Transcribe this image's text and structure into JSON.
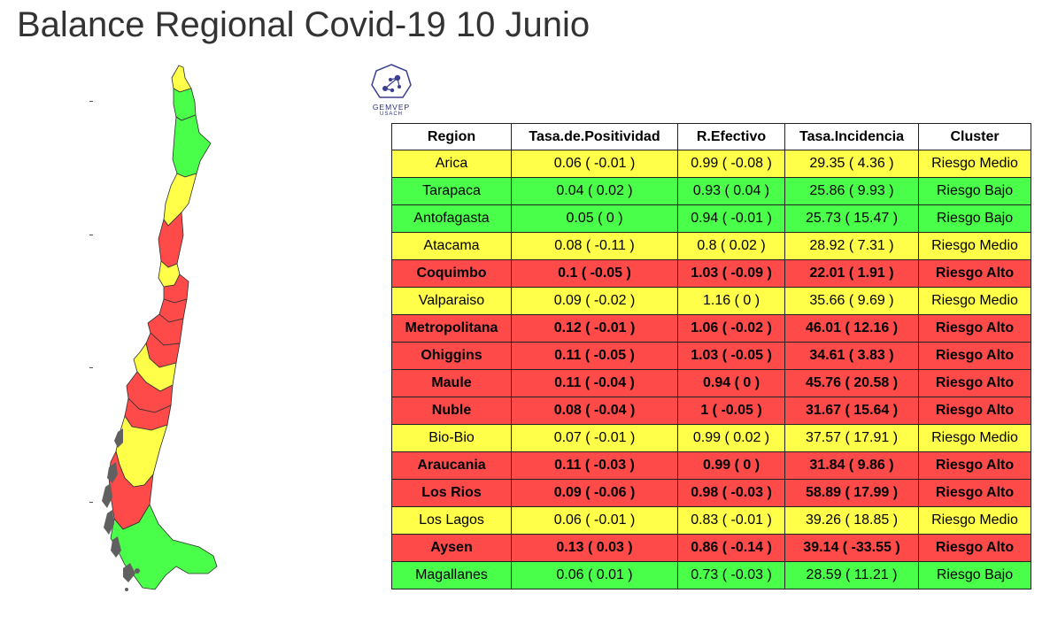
{
  "title": "Balance Regional Covid-19 10 Junio",
  "logo": {
    "text": "GEMVEP",
    "subtext": "USACH"
  },
  "colors": {
    "Riesgo Medio": "#ffff4a",
    "Riesgo Bajo": "#4aff4a",
    "Riesgo Alto": "#ff4a4a",
    "no_data": "#606060"
  },
  "chart_data": {
    "type": "table",
    "columns": [
      "Region",
      "Tasa.de.Positividad",
      "R.Efectivo",
      "Tasa.Incidencia",
      "Cluster"
    ],
    "rows": [
      [
        "Arica",
        "0.06 ( -0.01 )",
        "0.99 ( -0.08 )",
        "29.35 ( 4.36 )",
        "Riesgo Medio"
      ],
      [
        "Tarapaca",
        "0.04 ( 0.02 )",
        "0.93 ( 0.04 )",
        "25.86 ( 9.93 )",
        "Riesgo Bajo"
      ],
      [
        "Antofagasta",
        "0.05 ( 0 )",
        "0.94 ( -0.01 )",
        "25.73 ( 15.47 )",
        "Riesgo Bajo"
      ],
      [
        "Atacama",
        "0.08 ( -0.11 )",
        "0.8 ( 0.02 )",
        "28.92 ( 7.31 )",
        "Riesgo Medio"
      ],
      [
        "Coquimbo",
        "0.1 ( -0.05 )",
        "1.03 ( -0.09 )",
        "22.01 ( 1.91 )",
        "Riesgo Alto"
      ],
      [
        "Valparaiso",
        "0.09 ( -0.02 )",
        "1.16 ( 0 )",
        "35.66 ( 9.69 )",
        "Riesgo Medio"
      ],
      [
        "Metropolitana",
        "0.12 ( -0.01 )",
        "1.06 ( -0.02 )",
        "46.01 ( 12.16 )",
        "Riesgo Alto"
      ],
      [
        "Ohiggins",
        "0.11 ( -0.05 )",
        "1.03 ( -0.05 )",
        "34.61 ( 3.83 )",
        "Riesgo Alto"
      ],
      [
        "Maule",
        "0.11 ( -0.04 )",
        "0.94 ( 0 )",
        "45.76 ( 20.58 )",
        "Riesgo Alto"
      ],
      [
        "Nuble",
        "0.08 ( -0.04 )",
        "1 ( -0.05 )",
        "31.67 ( 15.64 )",
        "Riesgo Alto"
      ],
      [
        "Bio-Bio",
        "0.07 ( -0.01 )",
        "0.99 ( 0.02 )",
        "37.57 ( 17.91 )",
        "Riesgo Medio"
      ],
      [
        "Araucania",
        "0.11 ( -0.03 )",
        "0.99 ( 0 )",
        "31.84 ( 9.86 )",
        "Riesgo Alto"
      ],
      [
        "Los Rios",
        "0.09 ( -0.06 )",
        "0.98 ( -0.03 )",
        "58.89 ( 17.99 )",
        "Riesgo Alto"
      ],
      [
        "Los Lagos",
        "0.06 ( -0.01 )",
        "0.83 ( -0.01 )",
        "39.26 ( 18.85 )",
        "Riesgo Medio"
      ],
      [
        "Aysen",
        "0.13 ( 0.03 )",
        "0.86 ( -0.14 )",
        "39.14 ( -33.55 )",
        "Riesgo Alto"
      ],
      [
        "Magallanes",
        "0.06 ( 0.01 )",
        "0.73 ( -0.03 )",
        "28.59 ( 11.21 )",
        "Riesgo Bajo"
      ]
    ]
  }
}
